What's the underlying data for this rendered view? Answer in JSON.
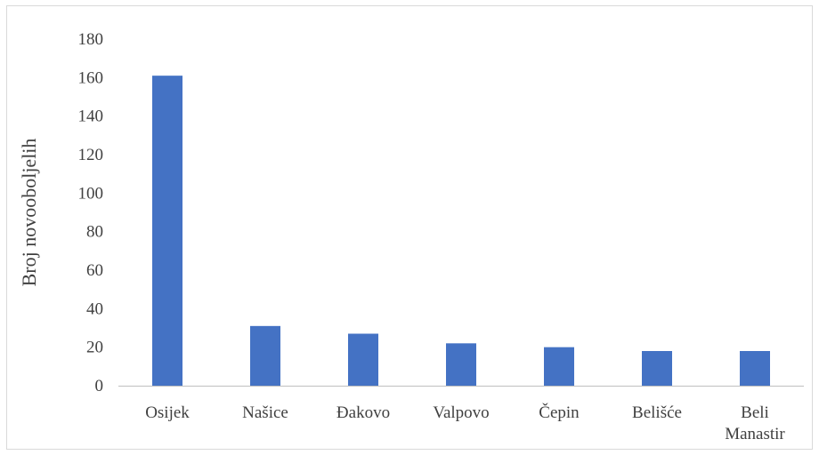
{
  "chart_data": {
    "type": "bar",
    "title": "",
    "xlabel": "",
    "ylabel": "Broj novooboljelih",
    "categories": [
      "Osijek",
      "Našice",
      "Đakovo",
      "Valpovo",
      "Čepin",
      "Belišće",
      "Beli Manastir"
    ],
    "values": [
      161,
      31,
      27,
      22,
      20,
      18,
      18
    ],
    "ylim": [
      0,
      180
    ],
    "yticks": [
      "0",
      "20",
      "40",
      "60",
      "80",
      "100",
      "120",
      "140",
      "160",
      "180"
    ],
    "grid": false,
    "legend": "none",
    "bar_color": "#4472c4",
    "axis_color": "#bfbfbf"
  }
}
